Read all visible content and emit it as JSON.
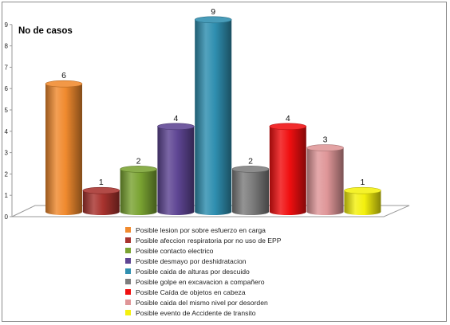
{
  "chart_data": {
    "type": "bar",
    "title": "",
    "ylabel": "No de casos",
    "xlabel": "",
    "ylim": [
      0,
      9
    ],
    "yticks": [
      "0",
      "1",
      "2",
      "3",
      "4",
      "5",
      "6",
      "7",
      "8",
      "9"
    ],
    "legend_position": "bottom",
    "grid": false,
    "series": [
      {
        "name": "Posible lesion por sobre esfuerzo en carga",
        "value": 6,
        "label": "6",
        "color": "#f08a2e"
      },
      {
        "name": "Posible afeccion respiratoria por no uso de EPP",
        "value": 1,
        "label": "1",
        "color": "#a8332e"
      },
      {
        "name": "Posible contacto electrico",
        "value": 2,
        "label": "2",
        "color": "#7aa332"
      },
      {
        "name": "Posible desmayo por deshidratacion",
        "value": 4,
        "label": "4",
        "color": "#5e4593"
      },
      {
        "name": "Posible caida de alturas por descuido",
        "value": 9,
        "label": "9",
        "color": "#2f8fb0"
      },
      {
        "name": "Posible golpe en excavacion a compañero",
        "value": 2,
        "label": "2",
        "color": "#7d7d7d"
      },
      {
        "name": "Posible Caída de objetos en cabeza",
        "value": 4,
        "label": "4",
        "color": "#f00f10"
      },
      {
        "name": "Posible caida del mismo nivel por desorden",
        "value": 3,
        "label": "3",
        "color": "#df9698"
      },
      {
        "name": "Posible evento de Accidente de transito",
        "value": 1,
        "label": "1",
        "color": "#f4f00e"
      }
    ]
  }
}
